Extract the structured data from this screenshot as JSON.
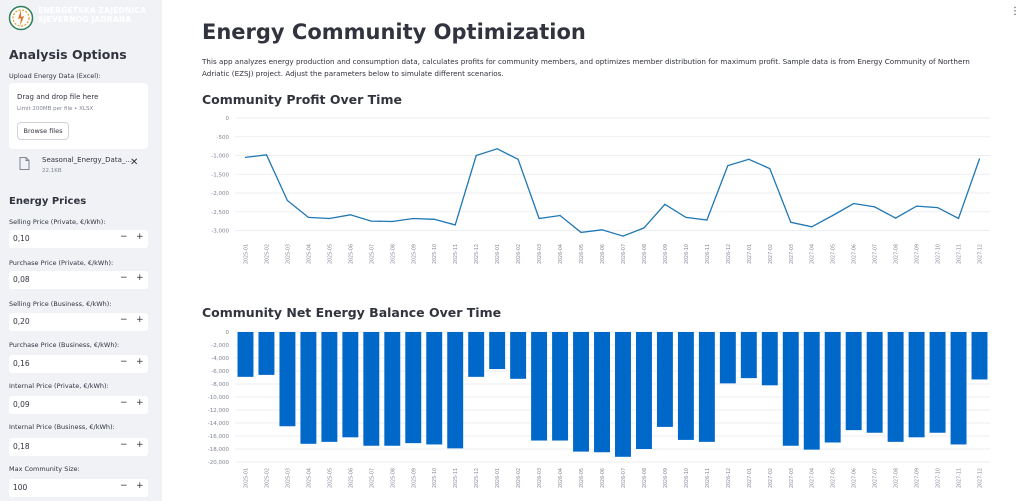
{
  "sidebar": {
    "logo_text_line1": "ENERGETSKA ZAJEDNICA",
    "logo_text_line2": "SJEVERNOG JADRANA",
    "title": "Analysis Options",
    "upload_label": "Upload Energy Data (Excel):",
    "drag_text": "Drag and drop file here",
    "limit_text": "Limit 200MB per file • XLSX",
    "browse_label": "Browse files",
    "file_name": "Seasonal_Energy_Data_...",
    "file_size": "22.1KB",
    "close_glyph": "✕",
    "prices_title": "Energy Prices",
    "inputs": [
      {
        "label": "Selling Price (Private, €/kWh):",
        "value": "0,10"
      },
      {
        "label": "Purchase Price (Private, €/kWh):",
        "value": "0,08"
      },
      {
        "label": "Selling Price (Business, €/kWh):",
        "value": "0,20"
      },
      {
        "label": "Purchase Price (Business, €/kWh):",
        "value": "0,16"
      },
      {
        "label": "Internal Price (Private, €/kWh):",
        "value": "0,09"
      },
      {
        "label": "Internal Price (Business, €/kWh):",
        "value": "0,18"
      },
      {
        "label": "Max Community Size:",
        "value": "100"
      }
    ],
    "minus": "−",
    "plus": "+"
  },
  "main": {
    "menu_glyph": "⋮",
    "title": "Energy Community Optimization",
    "intro": "This app analyzes energy production and consumption data, calculates profits for community members, and optimizes member distribution for maximum profit. Sample data is from Energy Community of Northern Adriatic (EZSJ) project. Adjust the parameters below to simulate different scenarios.",
    "profit_title": "Community Profit Over Time",
    "balance_title": "Community Net Energy Balance Over Time"
  },
  "colors": {
    "accent": "#1f77b4",
    "bar": "#0068c9",
    "sidebar_bg": "#f0f2f6",
    "text": "#31333f"
  },
  "chart_data": [
    {
      "type": "line",
      "title": "Community Profit Over Time",
      "x": [
        "2025-01",
        "2025-02",
        "2025-03",
        "2025-04",
        "2025-05",
        "2025-06",
        "2025-07",
        "2025-08",
        "2025-09",
        "2025-10",
        "2025-11",
        "2025-12",
        "2026-01",
        "2026-02",
        "2026-03",
        "2026-04",
        "2026-05",
        "2026-06",
        "2026-07",
        "2026-08",
        "2026-09",
        "2026-10",
        "2026-11",
        "2026-12",
        "2027-01",
        "2027-02",
        "2027-03",
        "2027-04",
        "2027-05",
        "2027-06",
        "2027-07",
        "2027-08",
        "2027-09",
        "2027-10",
        "2027-11",
        "2027-12"
      ],
      "y": [
        -1050,
        -980,
        -2200,
        -2650,
        -2680,
        -2580,
        -2750,
        -2760,
        -2680,
        -2700,
        -2850,
        -1000,
        -820,
        -1100,
        -2680,
        -2600,
        -3050,
        -2980,
        -3150,
        -2930,
        -2300,
        -2650,
        -2720,
        -1270,
        -1100,
        -1350,
        -2780,
        -2900,
        -2600,
        -2280,
        -2370,
        -2670,
        -2350,
        -2390,
        -2680,
        -1090
      ],
      "ylim": [
        -3200,
        0
      ],
      "yticks": [
        "0",
        "-500",
        "-1,000",
        "-1,500",
        "-2,000",
        "-2,500",
        "-3,000"
      ],
      "ytick_values": [
        0,
        -500,
        -1000,
        -1500,
        -2000,
        -2500,
        -3000
      ],
      "grid": true
    },
    {
      "type": "bar",
      "title": "Community Net Energy Balance Over Time",
      "categories": [
        "2025-01",
        "2025-02",
        "2025-03",
        "2025-04",
        "2025-05",
        "2025-06",
        "2025-07",
        "2025-08",
        "2025-09",
        "2025-10",
        "2025-11",
        "2025-12",
        "2026-01",
        "2026-02",
        "2026-03",
        "2026-04",
        "2026-05",
        "2026-06",
        "2026-07",
        "2026-08",
        "2026-09",
        "2026-10",
        "2026-11",
        "2026-12",
        "2027-01",
        "2027-02",
        "2027-03",
        "2027-04",
        "2027-05",
        "2027-06",
        "2027-07",
        "2027-08",
        "2027-09",
        "2027-10",
        "2027-11",
        "2027-12"
      ],
      "values": [
        -6900,
        -6600,
        -14500,
        -17200,
        -16900,
        -16200,
        -17500,
        -17500,
        -17100,
        -17300,
        -17900,
        -6900,
        -5700,
        -7200,
        -16700,
        -16700,
        -18400,
        -18500,
        -19200,
        -18000,
        -14600,
        -16600,
        -16900,
        -7900,
        -7100,
        -8200,
        -17500,
        -18100,
        -17000,
        -15100,
        -15500,
        -16900,
        -16200,
        -15500,
        -17300,
        -7300
      ],
      "ylim": [
        -20000,
        0
      ],
      "yticks": [
        "0",
        "-2,000",
        "-4,000",
        "-6,000",
        "-8,000",
        "-10,000",
        "-12,000",
        "-14,000",
        "-16,000",
        "-18,000",
        "-20,000"
      ],
      "ytick_values": [
        0,
        -2000,
        -4000,
        -6000,
        -8000,
        -10000,
        -12000,
        -14000,
        -16000,
        -18000,
        -20000
      ],
      "grid": true
    }
  ]
}
